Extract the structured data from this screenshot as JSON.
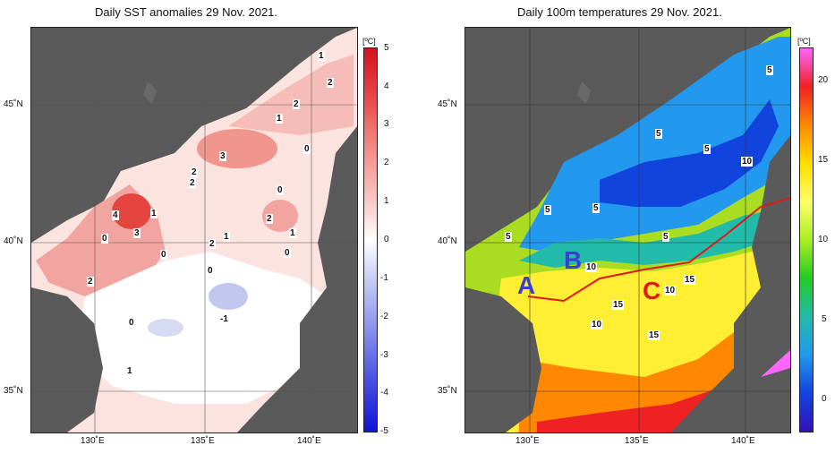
{
  "panels": {
    "left": {
      "title": "Daily SST anomalies 29 Nov. 2021.",
      "unit": "[ºC]",
      "colorbar_ticks": [
        "5",
        "4",
        "3",
        "2",
        "1",
        "0",
        "-1",
        "-2",
        "-3",
        "-4",
        "-5"
      ],
      "colorbar_colors": [
        "#d4141c",
        "#e43b3c",
        "#ee6e6a",
        "#f49c98",
        "#f9c9c6",
        "#ffffff",
        "#c9cdf4",
        "#9aa1ee",
        "#6a71e6",
        "#3a41de",
        "#1014d6"
      ],
      "lat_labels": [
        "45˚N",
        "40˚N",
        "35˚N"
      ],
      "lon_labels": [
        "130˚E",
        "135˚E",
        "140˚E"
      ],
      "contour_labels": [
        "1",
        "2",
        "2",
        "1",
        "0",
        "3",
        "2",
        "2",
        "0",
        "2",
        "1",
        "4",
        "1",
        "0",
        "3",
        "2",
        "1",
        "0",
        "0",
        "2",
        "0",
        "-1",
        "0",
        "1",
        "1"
      ]
    },
    "right": {
      "title": "Daily 100m temperatures 29 Nov. 2021.",
      "unit": "[ºC]",
      "colorbar_ticks": [
        "20",
        "15",
        "10",
        "5",
        "0"
      ],
      "colorbar_colors": [
        "#ff66ff",
        "#ee2222",
        "#ff8800",
        "#ffdd00",
        "#ffff66",
        "#aaee22",
        "#22cc22",
        "#22bbaa",
        "#2299ee",
        "#1144dd",
        "#3311bb"
      ],
      "lat_labels": [
        "45˚N",
        "40˚N",
        "35˚N"
      ],
      "lon_labels": [
        "130˚E",
        "135˚E",
        "140˚E"
      ],
      "contour_labels": [
        "5",
        "5",
        "5",
        "10",
        "5",
        "5",
        "5",
        "5",
        "10",
        "10",
        "15",
        "10",
        "15",
        "15"
      ],
      "region_labels": [
        {
          "text": "A",
          "color": "#3a3fd0"
        },
        {
          "text": "B",
          "color": "#3a3fd0"
        },
        {
          "text": "C",
          "color": "#e01818"
        }
      ],
      "route_color": "#e01818"
    }
  }
}
